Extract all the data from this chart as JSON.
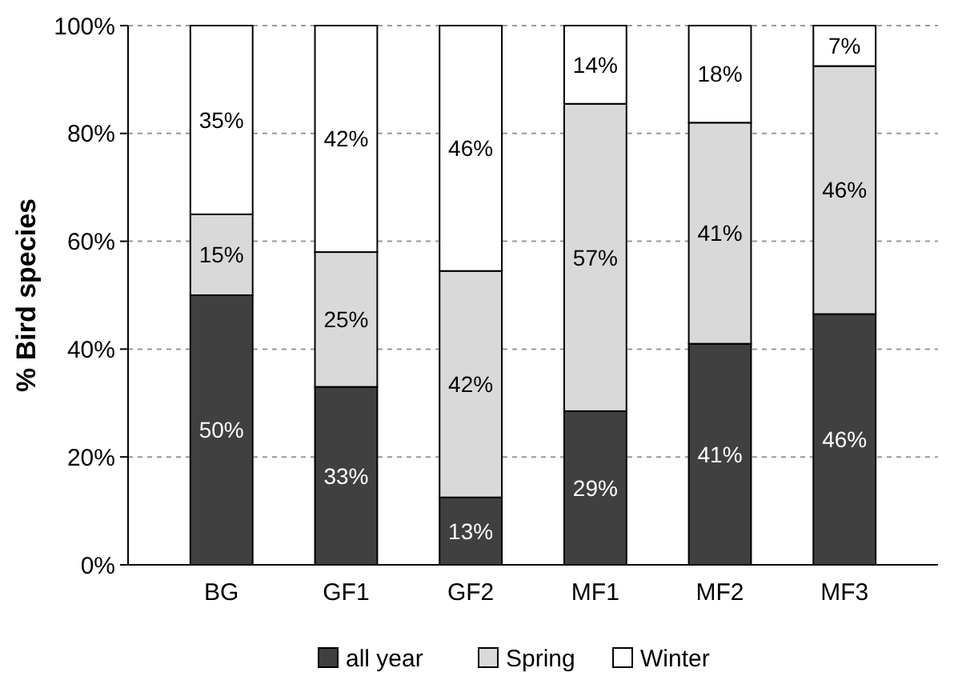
{
  "chart_data": {
    "type": "bar",
    "stacked": true,
    "ylabel": "% Bird species",
    "categories": [
      "BG",
      "GF1",
      "GF2",
      "MF1",
      "MF2",
      "MF3"
    ],
    "series": [
      {
        "name": "all year",
        "color": "#404040",
        "values": [
          50,
          33,
          12.5,
          28.5,
          41,
          46.5
        ],
        "value_labels": [
          "50%",
          "33%",
          "13%",
          "29%",
          "41%",
          "46%"
        ]
      },
      {
        "name": "Spring",
        "color": "#d9d9d9",
        "values": [
          15,
          25,
          42,
          57,
          41,
          46
        ],
        "value_labels": [
          "15%",
          "25%",
          "42%",
          "57%",
          "41%",
          "46%"
        ]
      },
      {
        "name": "Winter",
        "color": "#ffffff",
        "values": [
          35,
          42,
          45.5,
          14.5,
          18,
          7.5
        ],
        "value_labels": [
          "35%",
          "42%",
          "46%",
          "14%",
          "18%",
          "7%"
        ]
      }
    ],
    "ylim": [
      0,
      100
    ],
    "yticks": [
      {
        "value": 0,
        "label": "0%"
      },
      {
        "value": 20,
        "label": "20%"
      },
      {
        "value": 40,
        "label": "40%"
      },
      {
        "value": 60,
        "label": "60%"
      },
      {
        "value": 80,
        "label": "80%"
      },
      {
        "value": 100,
        "label": "100%"
      }
    ],
    "grid": "y",
    "legend": "bottom"
  }
}
